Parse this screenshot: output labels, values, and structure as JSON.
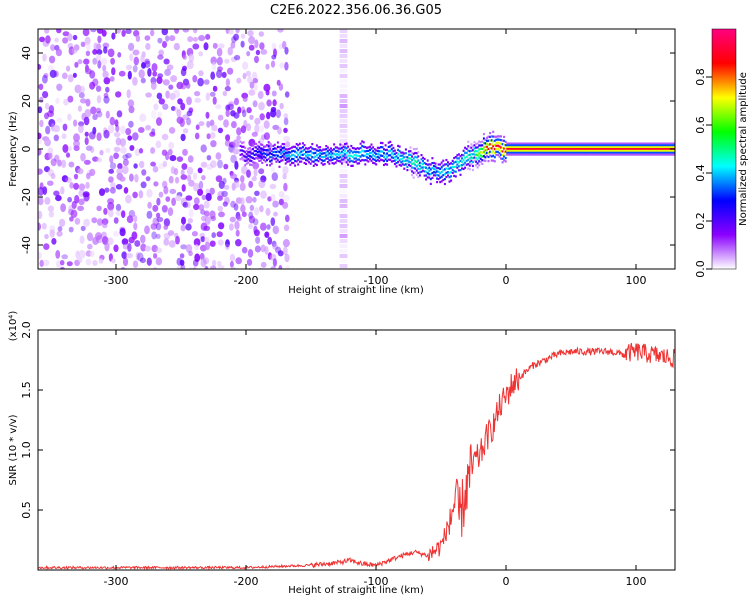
{
  "title": "C2E6.2022.356.06.36.G05",
  "chart_data": [
    {
      "type": "heatmap",
      "xlabel": "Height of straight line (km)",
      "ylabel": "Frequency (Hz)",
      "xlim": [
        -360,
        130
      ],
      "ylim": [
        -50,
        50
      ],
      "xticks": [
        -300,
        -200,
        -100,
        0,
        100
      ],
      "yticks": [
        -40,
        -20,
        0,
        20,
        40
      ],
      "colorbar": {
        "label": "Normalized spectral amplitude",
        "range": [
          0,
          1
        ],
        "ticks": [
          "0.0",
          "0.2",
          "0.4",
          "0.6",
          "0.8"
        ],
        "colors": [
          "#ffffff",
          "#8a00ff",
          "#0000ff",
          "#00ffff",
          "#00ff00",
          "#ffff00",
          "#ff0000",
          "#ff0080"
        ]
      },
      "noise_region": {
        "x": [
          -360,
          -170
        ],
        "y": [
          -50,
          50
        ],
        "level": 0.15
      },
      "noise_stripe": {
        "x": [
          -128,
          -122
        ],
        "y": [
          -50,
          50
        ],
        "level": 0.1
      },
      "signal_ridge": {
        "x": [
          -205,
          -180,
          -165,
          -150,
          -135,
          -120,
          -105,
          -90,
          -80,
          -70,
          -60,
          -50,
          -42,
          -35,
          -25,
          -15,
          -8,
          0,
          50,
          130
        ],
        "frequency": [
          -2,
          -2,
          -2,
          -2,
          -2,
          -2,
          -2,
          -2,
          -4,
          -6,
          -9,
          -10,
          -8,
          -5,
          -2,
          1,
          0,
          0,
          0,
          0
        ],
        "amplitude": [
          0.2,
          0.35,
          0.4,
          0.4,
          0.4,
          0.45,
          0.4,
          0.4,
          0.45,
          0.5,
          0.4,
          0.4,
          0.45,
          0.45,
          0.5,
          0.85,
          0.9,
          0.9,
          0.9,
          0.9
        ]
      }
    },
    {
      "type": "line",
      "xlabel": "Height of straight line (km)",
      "ylabel": "SNR (10 * v/v)",
      "y_multiplier": "(x10⁴)",
      "xlim": [
        -360,
        130
      ],
      "ylim": [
        0,
        2.0
      ],
      "xticks": [
        -300,
        -200,
        -100,
        0,
        100
      ],
      "yticks": [
        "0.5",
        "1.0",
        "1.5",
        "2.0"
      ],
      "line_color": "#ee3333",
      "series": [
        {
          "x": [
            -360,
            -300,
            -200,
            -150,
            -130,
            -120,
            -110,
            -100,
            -90,
            -80,
            -70,
            -60,
            -50,
            -45,
            -40,
            -35,
            -30,
            -25,
            -20,
            -15,
            -10,
            -5,
            0,
            5,
            10,
            20,
            30,
            40,
            50,
            60,
            70,
            80,
            90,
            100,
            110,
            120,
            130
          ],
          "y": [
            0.02,
            0.02,
            0.02,
            0.04,
            0.06,
            0.08,
            0.05,
            0.04,
            0.08,
            0.12,
            0.15,
            0.12,
            0.2,
            0.35,
            0.55,
            0.45,
            0.7,
            0.9,
            0.95,
            1.1,
            1.2,
            1.35,
            1.45,
            1.55,
            1.6,
            1.7,
            1.75,
            1.8,
            1.82,
            1.82,
            1.82,
            1.82,
            1.8,
            1.82,
            1.8,
            1.78,
            1.76
          ]
        }
      ]
    }
  ]
}
